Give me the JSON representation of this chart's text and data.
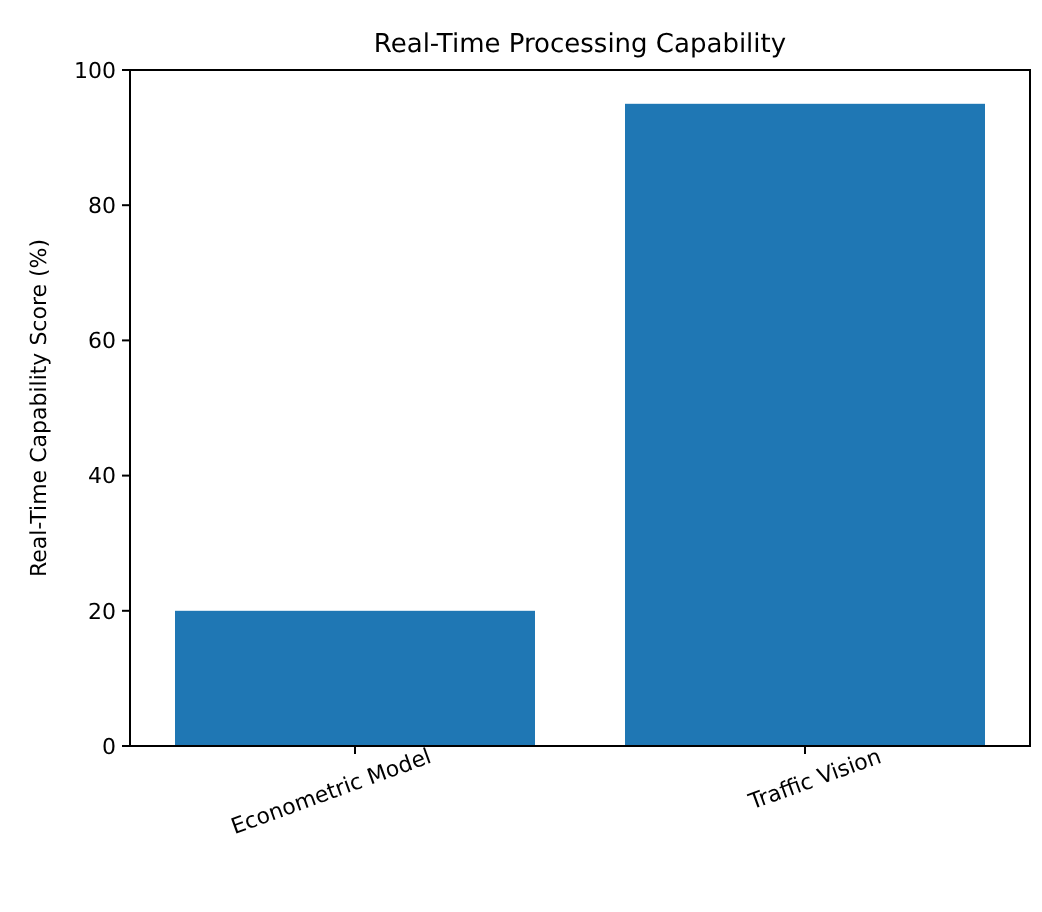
{
  "chart_data": {
    "type": "bar",
    "title": "Real-Time Processing Capability",
    "ylabel": "Real-Time Capability Score (%)",
    "categories": [
      "Econometric Model",
      "Traffic Vision"
    ],
    "values": [
      20,
      95
    ],
    "color": "#1f77b4",
    "ylim": [
      0,
      100
    ],
    "yticks": [
      0,
      20,
      40,
      60,
      80,
      100
    ]
  }
}
